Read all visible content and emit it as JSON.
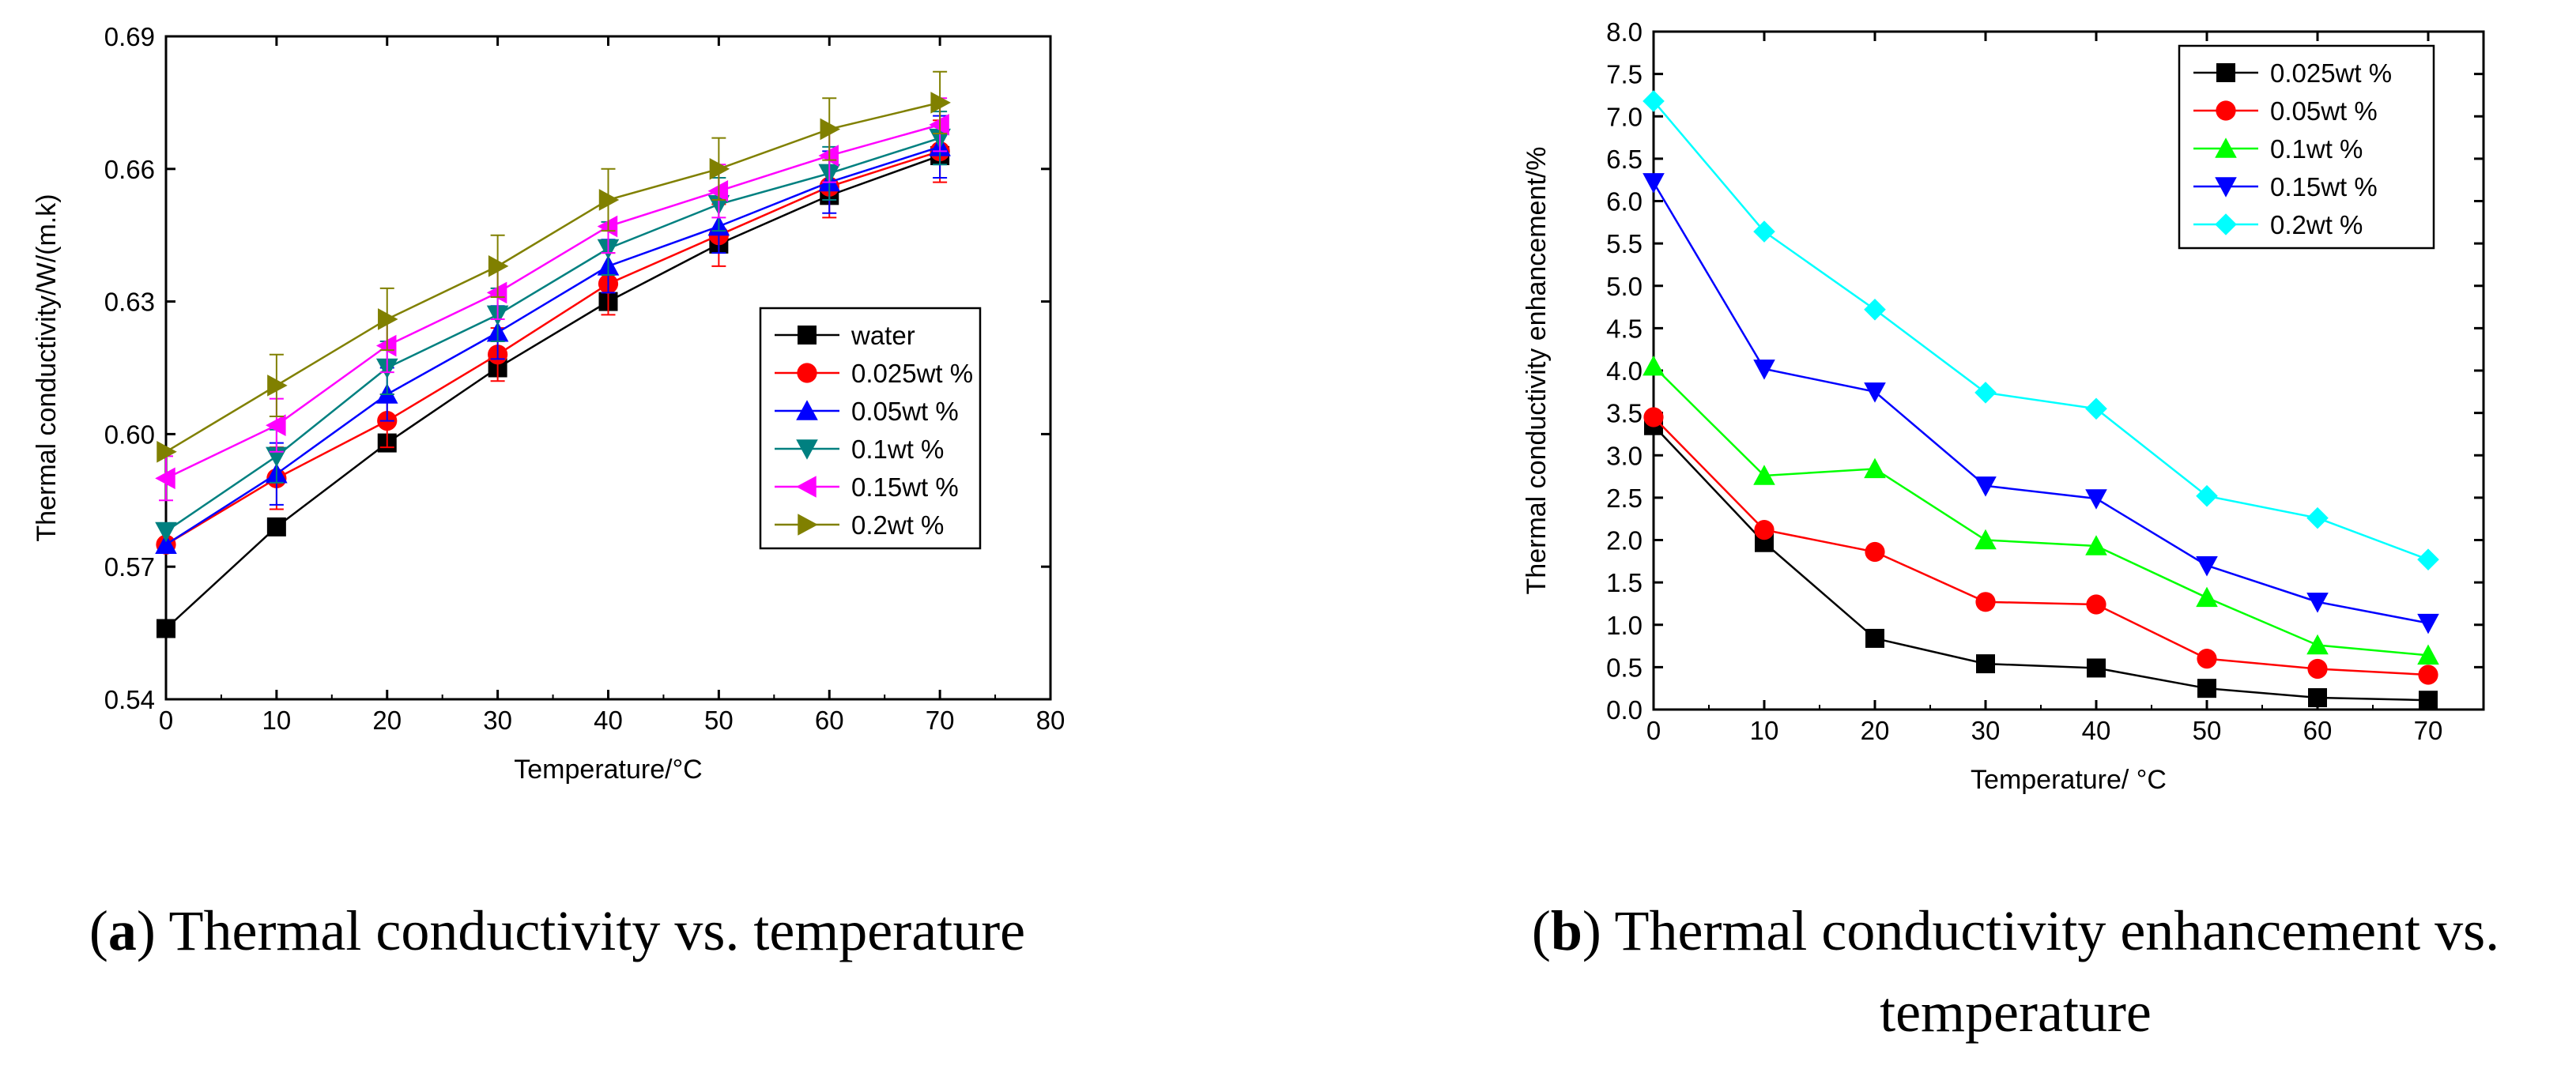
{
  "chart_data": [
    {
      "type": "line",
      "panel": "a",
      "title": "",
      "xlabel": "Temperature/°C",
      "ylabel": "Thermal conductivity/W/(m.k)",
      "xlim": [
        0,
        80
      ],
      "ylim": [
        0.54,
        0.69
      ],
      "xticks": [
        0,
        10,
        20,
        30,
        40,
        50,
        60,
        70,
        80
      ],
      "yticks": [
        0.54,
        0.57,
        0.6,
        0.63,
        0.66,
        0.69
      ],
      "ytick_labels": [
        "0.54",
        "0.57",
        "0.60",
        "0.63",
        "0.66",
        "0.69"
      ],
      "grid": false,
      "legend_position": "center-right",
      "x": [
        0,
        10,
        20,
        30,
        40,
        50,
        60,
        70
      ],
      "series": [
        {
          "name": "water",
          "color": "#000000",
          "marker": "square",
          "values": [
            0.556,
            0.579,
            0.598,
            0.615,
            0.63,
            0.643,
            0.654,
            0.663
          ],
          "error": [
            0.0,
            0.0,
            0.0,
            0.0,
            0.0,
            0.0,
            0.0,
            0.0
          ]
        },
        {
          "name": "0.025wt %",
          "color": "#ff0000",
          "marker": "circle",
          "values": [
            0.575,
            0.59,
            0.603,
            0.618,
            0.634,
            0.645,
            0.656,
            0.664
          ],
          "error": [
            0.0,
            0.007,
            0.006,
            0.006,
            0.007,
            0.007,
            0.007,
            0.007
          ]
        },
        {
          "name": "0.05wt %",
          "color": "#0000ff",
          "marker": "triangle-up",
          "values": [
            0.575,
            0.591,
            0.609,
            0.623,
            0.638,
            0.647,
            0.657,
            0.665
          ],
          "error": [
            0.0,
            0.007,
            0.006,
            0.006,
            0.006,
            0.006,
            0.007,
            0.007
          ]
        },
        {
          "name": "0.1wt %",
          "color": "#008080",
          "marker": "triangle-down",
          "values": [
            0.578,
            0.595,
            0.615,
            0.627,
            0.642,
            0.652,
            0.659,
            0.667
          ],
          "error": [
            0.0,
            0.006,
            0.006,
            0.006,
            0.006,
            0.006,
            0.006,
            0.006
          ]
        },
        {
          "name": "0.15wt %",
          "color": "#ff00ff",
          "marker": "triangle-left",
          "values": [
            0.59,
            0.602,
            0.62,
            0.632,
            0.647,
            0.655,
            0.663,
            0.67
          ],
          "error": [
            0.005,
            0.006,
            0.006,
            0.006,
            0.006,
            0.006,
            0.006,
            0.006
          ]
        },
        {
          "name": "0.2wt %",
          "color": "#808000",
          "marker": "triangle-right",
          "values": [
            0.596,
            0.611,
            0.626,
            0.638,
            0.653,
            0.66,
            0.669,
            0.675
          ],
          "error": [
            0.0,
            0.007,
            0.007,
            0.007,
            0.007,
            0.007,
            0.007,
            0.007
          ]
        }
      ]
    },
    {
      "type": "line",
      "panel": "b",
      "title": "",
      "xlabel": "Temperature/ °C",
      "ylabel": "Thermal conductivity enhancement/%",
      "xlim": [
        0,
        75
      ],
      "ylim": [
        0,
        8
      ],
      "xticks": [
        0,
        10,
        20,
        30,
        40,
        50,
        60,
        70
      ],
      "yticks": [
        0,
        0.5,
        1,
        1.5,
        2,
        2.5,
        3,
        3.5,
        4,
        4.5,
        5,
        5.5,
        6,
        6.5,
        7,
        7.5,
        8
      ],
      "ytick_labels": [
        "0.0",
        "0.5",
        "1.0",
        "1.5",
        "2.0",
        "2.5",
        "3.0",
        "3.5",
        "4.0",
        "4.5",
        "5.0",
        "5.5",
        "6.0",
        "6.5",
        "7.0",
        "7.5",
        "8.0"
      ],
      "grid": false,
      "legend_position": "top-right",
      "x": [
        0,
        10,
        20,
        30,
        40,
        50,
        60,
        70
      ],
      "series": [
        {
          "name": "0.025wt %",
          "color": "#000000",
          "marker": "square",
          "values": [
            3.35,
            1.97,
            0.84,
            0.54,
            0.49,
            0.25,
            0.14,
            0.11
          ]
        },
        {
          "name": "0.05wt %",
          "color": "#ff0000",
          "marker": "circle",
          "values": [
            3.45,
            2.12,
            1.86,
            1.27,
            1.24,
            0.6,
            0.48,
            0.41
          ]
        },
        {
          "name": "0.1wt %",
          "color": "#00ff00",
          "marker": "triangle-up",
          "values": [
            4.05,
            2.76,
            2.84,
            2.0,
            1.93,
            1.32,
            0.76,
            0.64
          ]
        },
        {
          "name": "0.15wt %",
          "color": "#0000ff",
          "marker": "triangle-down",
          "values": [
            6.22,
            4.02,
            3.75,
            2.64,
            2.49,
            1.7,
            1.27,
            1.02
          ]
        },
        {
          "name": "0.2wt %",
          "color": "#00ffff",
          "marker": "diamond",
          "values": [
            7.18,
            5.64,
            4.72,
            3.74,
            3.55,
            2.52,
            2.26,
            1.77
          ]
        }
      ]
    }
  ],
  "captions": {
    "a_letter": "a",
    "a_text": " Thermal conductivity vs. temperature",
    "b_letter": "b",
    "b_text": " Thermal conductivity enhancement vs.",
    "b_text2": "temperature"
  }
}
